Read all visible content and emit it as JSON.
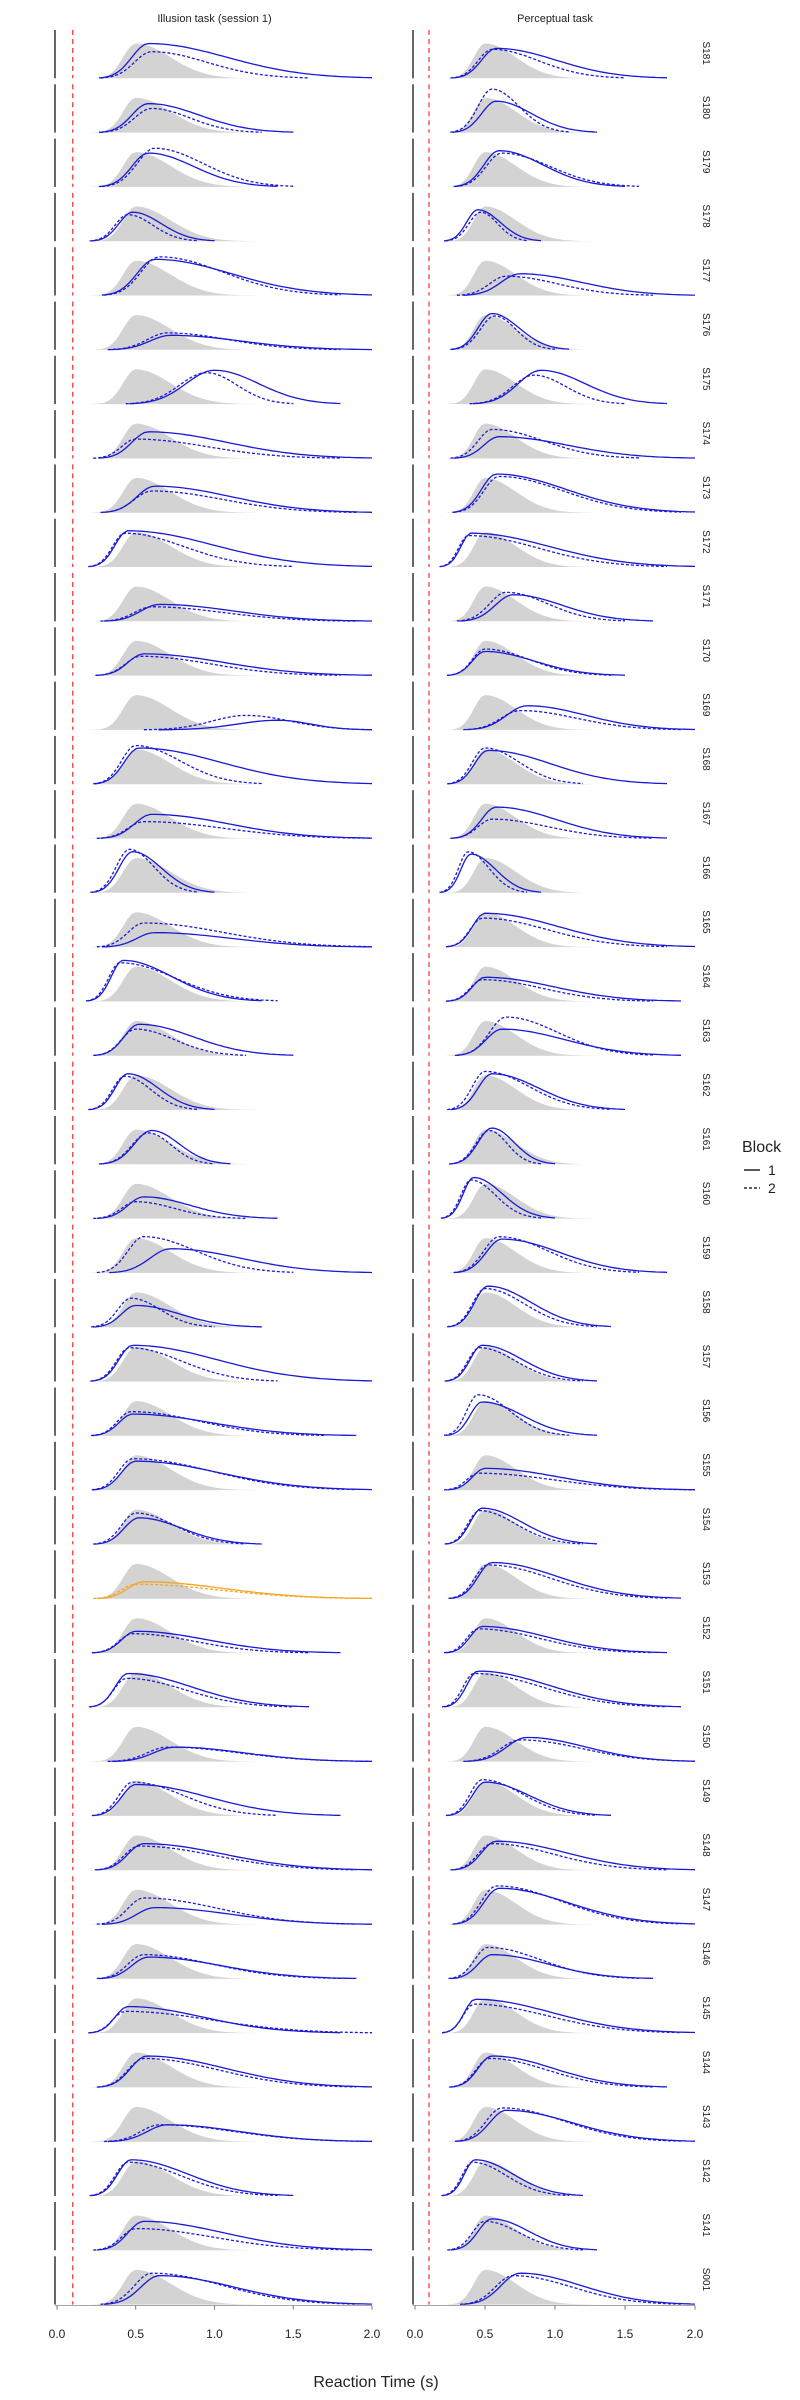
{
  "chart_data": {
    "type": "density-facet-grid",
    "xlabel": "Reaction Time (s)",
    "ylabel": "",
    "xlim": [
      0,
      2
    ],
    "x_ticks": [
      0.0,
      0.5,
      1.0,
      1.5,
      2.0
    ],
    "x_tick_labels": {
      "left": [
        "0.0",
        "0.5",
        "1.0",
        "1.5",
        "2.0"
      ],
      "right": [
        "0.0",
        "0.5",
        "1.0",
        "1.5",
        "2.0"
      ]
    },
    "cutoff_x": 0.1,
    "columns": [
      {
        "key": "illusion",
        "label": "Illusion task (session 1)"
      },
      {
        "key": "perceptual",
        "label": "Perceptual task"
      }
    ],
    "legend": {
      "title": "Block",
      "position": "right",
      "items": [
        {
          "label": "1",
          "style": "solid"
        },
        {
          "label": "2",
          "style": "dashed"
        }
      ]
    },
    "colors": {
      "block_line": "#1a1ad6",
      "highlight_line": "#f5a623",
      "reference_fill": "#d3d3d3",
      "cutoff_line": "#ff1a1a",
      "axis_line": "#000000"
    },
    "reference_density": {
      "mode": 0.5,
      "left_sd": 0.08,
      "right_sd": 0.22
    },
    "highlight": {
      "subject": "S153",
      "column": "illusion"
    },
    "subjects": [
      "S181",
      "S180",
      "S179",
      "S178",
      "S177",
      "S176",
      "S175",
      "S174",
      "S173",
      "S172",
      "S171",
      "S170",
      "S169",
      "S168",
      "S167",
      "S166",
      "S165",
      "S164",
      "S163",
      "S162",
      "S161",
      "S160",
      "S159",
      "S158",
      "S157",
      "S156",
      "S155",
      "S154",
      "S153",
      "S152",
      "S151",
      "S150",
      "S149",
      "S148",
      "S147",
      "S146",
      "S145",
      "S144",
      "S143",
      "S142",
      "S141",
      "S001"
    ],
    "series": {
      "S181": {
        "illusion": {
          "b1": [
            0.58,
            0.72,
            2.0
          ],
          "b2": [
            0.6,
            0.55,
            1.6
          ]
        },
        "perceptual": {
          "b1": [
            0.58,
            0.62,
            1.8
          ],
          "b2": [
            0.55,
            0.6,
            1.5
          ]
        }
      },
      "S180": {
        "illusion": {
          "b1": [
            0.58,
            0.6,
            1.5
          ],
          "b2": [
            0.6,
            0.5,
            1.3
          ]
        },
        "perceptual": {
          "b1": [
            0.58,
            0.65,
            1.3
          ],
          "b2": [
            0.55,
            0.9,
            1.1
          ]
        }
      },
      "S179": {
        "illusion": {
          "b1": [
            0.58,
            0.7,
            1.4
          ],
          "b2": [
            0.62,
            0.8,
            1.5
          ]
        },
        "perceptual": {
          "b1": [
            0.6,
            0.75,
            1.5
          ],
          "b2": [
            0.62,
            0.7,
            1.6
          ]
        }
      },
      "S178": {
        "illusion": {
          "b1": [
            0.48,
            0.6,
            1.0
          ],
          "b2": [
            0.45,
            0.55,
            0.9
          ]
        },
        "perceptual": {
          "b1": [
            0.45,
            0.65,
            0.9
          ],
          "b2": [
            0.47,
            0.6,
            0.8
          ]
        }
      },
      "S177": {
        "illusion": {
          "b1": [
            0.62,
            0.75,
            2.0
          ],
          "b2": [
            0.65,
            0.8,
            1.8
          ]
        },
        "perceptual": {
          "b1": [
            0.75,
            0.45,
            2.0
          ],
          "b2": [
            0.65,
            0.4,
            1.7
          ]
        }
      },
      "S176": {
        "illusion": {
          "b1": [
            0.72,
            0.3,
            2.0
          ],
          "b2": [
            0.7,
            0.35,
            1.8
          ]
        },
        "perceptual": {
          "b1": [
            0.55,
            0.75,
            1.1
          ],
          "b2": [
            0.57,
            0.7,
            1.0
          ]
        }
      },
      "S175": {
        "illusion": {
          "b1": [
            1.0,
            0.7,
            1.8
          ],
          "b2": [
            0.95,
            0.65,
            1.5
          ]
        },
        "perceptual": {
          "b1": [
            0.9,
            0.7,
            1.8
          ],
          "b2": [
            0.85,
            0.6,
            1.5
          ]
        }
      },
      "S174": {
        "illusion": {
          "b1": [
            0.58,
            0.55,
            2.0
          ],
          "b2": [
            0.5,
            0.4,
            1.8
          ]
        },
        "perceptual": {
          "b1": [
            0.6,
            0.45,
            2.0
          ],
          "b2": [
            0.55,
            0.6,
            1.6
          ]
        }
      },
      "S173": {
        "illusion": {
          "b1": [
            0.62,
            0.55,
            2.0
          ],
          "b2": [
            0.6,
            0.45,
            1.9
          ]
        },
        "perceptual": {
          "b1": [
            0.58,
            0.8,
            2.0
          ],
          "b2": [
            0.6,
            0.75,
            1.9
          ]
        }
      },
      "S172": {
        "illusion": {
          "b1": [
            0.45,
            0.75,
            2.0
          ],
          "b2": [
            0.43,
            0.7,
            1.5
          ]
        },
        "perceptual": {
          "b1": [
            0.4,
            0.7,
            2.0
          ],
          "b2": [
            0.38,
            0.65,
            1.8
          ]
        }
      },
      "S171": {
        "illusion": {
          "b1": [
            0.65,
            0.35,
            2.0
          ],
          "b2": [
            0.6,
            0.3,
            1.9
          ]
        },
        "perceptual": {
          "b1": [
            0.7,
            0.55,
            1.7
          ],
          "b2": [
            0.65,
            0.6,
            1.5
          ]
        }
      },
      "S170": {
        "illusion": {
          "b1": [
            0.55,
            0.45,
            2.0
          ],
          "b2": [
            0.53,
            0.4,
            1.8
          ]
        },
        "perceptual": {
          "b1": [
            0.5,
            0.5,
            1.5
          ],
          "b2": [
            0.5,
            0.55,
            1.4
          ]
        }
      },
      "S169": {
        "illusion": {
          "b1": [
            1.4,
            0.2,
            2.0
          ],
          "b2": [
            1.2,
            0.3,
            2.0
          ]
        },
        "perceptual": {
          "b1": [
            0.8,
            0.5,
            2.0
          ],
          "b2": [
            0.75,
            0.4,
            1.9
          ]
        }
      },
      "S168": {
        "illusion": {
          "b1": [
            0.52,
            0.75,
            2.0
          ],
          "b2": [
            0.5,
            0.8,
            1.3
          ]
        },
        "perceptual": {
          "b1": [
            0.52,
            0.7,
            1.8
          ],
          "b2": [
            0.5,
            0.75,
            1.2
          ]
        }
      },
      "S167": {
        "illusion": {
          "b1": [
            0.6,
            0.5,
            2.0
          ],
          "b2": [
            0.55,
            0.35,
            2.0
          ]
        },
        "perceptual": {
          "b1": [
            0.58,
            0.65,
            1.8
          ],
          "b2": [
            0.55,
            0.4,
            1.7
          ]
        }
      },
      "S166": {
        "illusion": {
          "b1": [
            0.48,
            0.85,
            1.0
          ],
          "b2": [
            0.46,
            0.9,
            0.9
          ]
        },
        "perceptual": {
          "b1": [
            0.4,
            0.8,
            0.9
          ],
          "b2": [
            0.38,
            0.85,
            0.8
          ]
        }
      },
      "S165": {
        "illusion": {
          "b1": [
            0.62,
            0.3,
            2.0
          ],
          "b2": [
            0.55,
            0.5,
            2.0
          ]
        },
        "perceptual": {
          "b1": [
            0.5,
            0.7,
            2.0
          ],
          "b2": [
            0.48,
            0.6,
            1.8
          ]
        }
      },
      "S164": {
        "illusion": {
          "b1": [
            0.42,
            0.85,
            1.3
          ],
          "b2": [
            0.4,
            0.8,
            1.4
          ]
        },
        "perceptual": {
          "b1": [
            0.5,
            0.5,
            1.9
          ],
          "b2": [
            0.48,
            0.45,
            1.7
          ]
        }
      },
      "S163": {
        "illusion": {
          "b1": [
            0.52,
            0.65,
            1.5
          ],
          "b2": [
            0.5,
            0.55,
            1.2
          ]
        },
        "perceptual": {
          "b1": [
            0.62,
            0.55,
            1.9
          ],
          "b2": [
            0.65,
            0.8,
            1.7
          ]
        }
      },
      "S162": {
        "illusion": {
          "b1": [
            0.45,
            0.75,
            1.0
          ],
          "b2": [
            0.43,
            0.7,
            0.9
          ]
        },
        "perceptual": {
          "b1": [
            0.55,
            0.75,
            1.5
          ],
          "b2": [
            0.5,
            0.8,
            1.4
          ]
        }
      },
      "S161": {
        "illusion": {
          "b1": [
            0.6,
            0.7,
            1.1
          ],
          "b2": [
            0.58,
            0.65,
            1.0
          ]
        },
        "perceptual": {
          "b1": [
            0.55,
            0.75,
            1.0
          ],
          "b2": [
            0.53,
            0.7,
            0.9
          ]
        }
      },
      "S160": {
        "illusion": {
          "b1": [
            0.55,
            0.45,
            1.4
          ],
          "b2": [
            0.5,
            0.35,
            1.2
          ]
        },
        "perceptual": {
          "b1": [
            0.42,
            0.85,
            1.0
          ],
          "b2": [
            0.4,
            0.8,
            0.9
          ]
        }
      },
      "S159": {
        "illusion": {
          "b1": [
            0.72,
            0.5,
            2.0
          ],
          "b2": [
            0.55,
            0.75,
            1.5
          ]
        },
        "perceptual": {
          "b1": [
            0.62,
            0.7,
            1.8
          ],
          "b2": [
            0.6,
            0.75,
            1.6
          ]
        }
      },
      "S158": {
        "illusion": {
          "b1": [
            0.5,
            0.45,
            1.3
          ],
          "b2": [
            0.47,
            0.6,
            1.0
          ]
        },
        "perceptual": {
          "b1": [
            0.52,
            0.85,
            1.4
          ],
          "b2": [
            0.5,
            0.8,
            1.3
          ]
        }
      },
      "S157": {
        "illusion": {
          "b1": [
            0.48,
            0.75,
            2.0
          ],
          "b2": [
            0.46,
            0.7,
            1.4
          ]
        },
        "perceptual": {
          "b1": [
            0.48,
            0.75,
            1.3
          ],
          "b2": [
            0.46,
            0.7,
            1.2
          ]
        }
      },
      "S156": {
        "illusion": {
          "b1": [
            0.48,
            0.45,
            1.9
          ],
          "b2": [
            0.47,
            0.5,
            1.7
          ]
        },
        "perceptual": {
          "b1": [
            0.48,
            0.7,
            1.3
          ],
          "b2": [
            0.45,
            0.85,
            1.1
          ]
        }
      },
      "S155": {
        "illusion": {
          "b1": [
            0.5,
            0.6,
            2.0
          ],
          "b2": [
            0.48,
            0.65,
            1.9
          ]
        },
        "perceptual": {
          "b1": [
            0.5,
            0.45,
            2.0
          ],
          "b2": [
            0.45,
            0.35,
            2.0
          ]
        }
      },
      "S154": {
        "illusion": {
          "b1": [
            0.52,
            0.55,
            1.3
          ],
          "b2": [
            0.5,
            0.65,
            1.2
          ]
        },
        "perceptual": {
          "b1": [
            0.48,
            0.75,
            1.3
          ],
          "b2": [
            0.46,
            0.7,
            1.2
          ]
        }
      },
      "S153": {
        "illusion": {
          "b1": [
            0.55,
            0.35,
            2.0
          ],
          "b2": [
            0.5,
            0.3,
            2.0
          ]
        },
        "perceptual": {
          "b1": [
            0.55,
            0.75,
            1.9
          ],
          "b2": [
            0.52,
            0.7,
            1.8
          ]
        }
      },
      "S152": {
        "illusion": {
          "b1": [
            0.5,
            0.45,
            1.8
          ],
          "b2": [
            0.48,
            0.4,
            1.6
          ]
        },
        "perceptual": {
          "b1": [
            0.48,
            0.55,
            1.8
          ],
          "b2": [
            0.45,
            0.5,
            1.7
          ]
        }
      },
      "S151": {
        "illusion": {
          "b1": [
            0.45,
            0.7,
            1.6
          ],
          "b2": [
            0.44,
            0.6,
            1.5
          ]
        },
        "perceptual": {
          "b1": [
            0.45,
            0.75,
            1.9
          ],
          "b2": [
            0.42,
            0.7,
            1.8
          ]
        }
      },
      "S150": {
        "illusion": {
          "b1": [
            0.75,
            0.3,
            2.0
          ],
          "b2": [
            0.7,
            0.3,
            2.0
          ]
        },
        "perceptual": {
          "b1": [
            0.8,
            0.5,
            2.0
          ],
          "b2": [
            0.75,
            0.45,
            2.0
          ]
        }
      },
      "S149": {
        "illusion": {
          "b1": [
            0.5,
            0.65,
            1.8
          ],
          "b2": [
            0.48,
            0.7,
            1.4
          ]
        },
        "perceptual": {
          "b1": [
            0.5,
            0.7,
            1.4
          ],
          "b2": [
            0.48,
            0.75,
            1.3
          ]
        }
      },
      "S148": {
        "illusion": {
          "b1": [
            0.55,
            0.55,
            2.0
          ],
          "b2": [
            0.52,
            0.5,
            1.9
          ]
        },
        "perceptual": {
          "b1": [
            0.58,
            0.6,
            2.0
          ],
          "b2": [
            0.55,
            0.55,
            1.8
          ]
        }
      },
      "S147": {
        "illusion": {
          "b1": [
            0.62,
            0.35,
            2.0
          ],
          "b2": [
            0.55,
            0.55,
            1.9
          ]
        },
        "perceptual": {
          "b1": [
            0.6,
            0.75,
            2.0
          ],
          "b2": [
            0.58,
            0.8,
            1.9
          ]
        }
      },
      "S146": {
        "illusion": {
          "b1": [
            0.58,
            0.45,
            1.9
          ],
          "b2": [
            0.55,
            0.5,
            1.8
          ]
        },
        "perceptual": {
          "b1": [
            0.55,
            0.5,
            1.7
          ],
          "b2": [
            0.52,
            0.65,
            1.6
          ]
        }
      },
      "S145": {
        "illusion": {
          "b1": [
            0.45,
            0.55,
            1.8
          ],
          "b2": [
            0.43,
            0.45,
            2.0
          ]
        },
        "perceptual": {
          "b1": [
            0.43,
            0.7,
            2.0
          ],
          "b2": [
            0.42,
            0.6,
            1.9
          ]
        }
      },
      "S144": {
        "illusion": {
          "b1": [
            0.57,
            0.65,
            2.0
          ],
          "b2": [
            0.55,
            0.6,
            1.9
          ]
        },
        "perceptual": {
          "b1": [
            0.55,
            0.65,
            1.8
          ],
          "b2": [
            0.53,
            0.6,
            1.7
          ]
        }
      },
      "S143": {
        "illusion": {
          "b1": [
            0.7,
            0.35,
            2.0
          ],
          "b2": [
            0.65,
            0.35,
            2.0
          ]
        },
        "perceptual": {
          "b1": [
            0.65,
            0.65,
            2.0
          ],
          "b2": [
            0.62,
            0.7,
            1.9
          ]
        }
      },
      "S142": {
        "illusion": {
          "b1": [
            0.47,
            0.75,
            1.5
          ],
          "b2": [
            0.45,
            0.7,
            1.4
          ]
        },
        "perceptual": {
          "b1": [
            0.43,
            0.75,
            1.2
          ],
          "b2": [
            0.41,
            0.7,
            1.1
          ]
        }
      },
      "S141": {
        "illusion": {
          "b1": [
            0.55,
            0.6,
            2.0
          ],
          "b2": [
            0.5,
            0.45,
            1.9
          ]
        },
        "perceptual": {
          "b1": [
            0.55,
            0.65,
            1.3
          ],
          "b2": [
            0.5,
            0.6,
            1.2
          ]
        }
      },
      "S001": {
        "illusion": {
          "b1": [
            0.65,
            0.6,
            2.0
          ],
          "b2": [
            0.6,
            0.65,
            1.9
          ]
        },
        "perceptual": {
          "b1": [
            0.75,
            0.65,
            2.0
          ],
          "b2": [
            0.7,
            0.6,
            1.9
          ]
        }
      }
    }
  }
}
